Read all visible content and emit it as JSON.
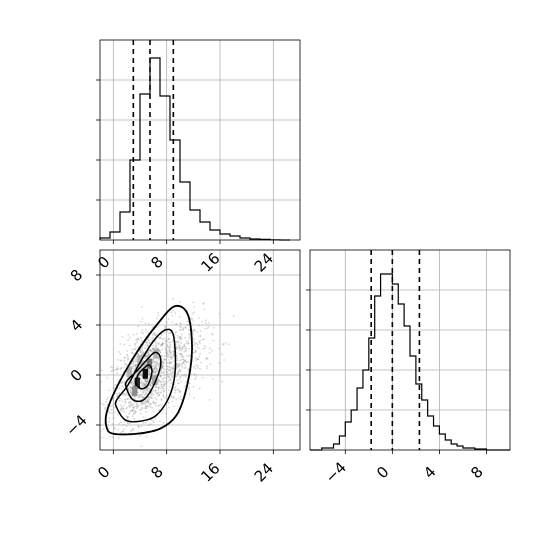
{
  "chart_data": {
    "type": "corner",
    "title": "",
    "grid": true,
    "colors": {
      "line": "#000000",
      "grid": "#b0b0b0",
      "scatter": "#8c8c8c"
    },
    "x_hist": {
      "type": "histogram",
      "xlim": [
        -2,
        28
      ],
      "ylim": [
        0,
        1
      ],
      "xticks": [
        0,
        8,
        16,
        24
      ],
      "bin_edges": [
        -2.0,
        -0.5,
        1.0,
        2.5,
        4.0,
        5.5,
        7.0,
        8.5,
        10.0,
        11.5,
        13.0,
        14.5,
        16.0,
        17.5,
        19.0,
        20.5,
        22.0,
        23.5,
        25.0,
        26.5
      ],
      "values": [
        0.01,
        0.04,
        0.14,
        0.4,
        0.73,
        0.91,
        0.72,
        0.5,
        0.29,
        0.15,
        0.09,
        0.05,
        0.03,
        0.02,
        0.01,
        0.005,
        0.003,
        0.001,
        0.0
      ],
      "quantile_lines": [
        3.0,
        5.5,
        9.0
      ]
    },
    "y_hist": {
      "type": "histogram",
      "xlim": [
        -7,
        10
      ],
      "ylim": [
        0,
        1
      ],
      "xticks": [
        -4,
        0,
        4,
        8
      ],
      "xtick_labels": [
        "−4",
        "0",
        "4",
        "8"
      ],
      "bin_edges": [
        -7.0,
        -6.0,
        -5.0,
        -4.5,
        -4.0,
        -3.5,
        -3.0,
        -2.5,
        -2.0,
        -1.5,
        -1.0,
        -0.5,
        0.0,
        0.5,
        1.0,
        1.5,
        2.0,
        2.5,
        3.0,
        3.5,
        4.0,
        4.5,
        5.0,
        5.5,
        6.0,
        7.0,
        8.0,
        9.0,
        10.0
      ],
      "values": [
        0.0,
        0.01,
        0.03,
        0.07,
        0.14,
        0.2,
        0.31,
        0.4,
        0.56,
        0.77,
        0.88,
        0.88,
        0.83,
        0.73,
        0.62,
        0.47,
        0.33,
        0.25,
        0.17,
        0.12,
        0.08,
        0.05,
        0.03,
        0.02,
        0.01,
        0.005,
        0.0,
        0.0
      ],
      "quantile_lines": [
        -1.8,
        0.0,
        2.3
      ]
    },
    "joint": {
      "type": "scatter+contour",
      "xlim": [
        -2,
        28
      ],
      "ylim": [
        -6,
        10
      ],
      "xticks": [
        0,
        8,
        16,
        24
      ],
      "yticks": [
        -4,
        0,
        4,
        8
      ],
      "ytick_labels": [
        "−4",
        "0",
        "4",
        "8"
      ],
      "scatter": {
        "count": 1600,
        "x_center": 5.5,
        "x_spread": 2.8,
        "y_center": 0.2,
        "y_spread": 2.0,
        "correlation": 0.5
      },
      "contours": [
        [
          [
            -1.0,
            -4.2
          ],
          [
            0.0,
            -4.7
          ],
          [
            3.5,
            -4.7
          ],
          [
            7.0,
            -4.3
          ],
          [
            9.5,
            -3.2
          ],
          [
            11.0,
            -1.0
          ],
          [
            11.8,
            2.0
          ],
          [
            11.2,
            4.8
          ],
          [
            9.2,
            5.5
          ],
          [
            6.5,
            4.0
          ],
          [
            3.5,
            1.8
          ],
          [
            0.5,
            -1.0
          ],
          [
            -1.0,
            -3.0
          ],
          [
            -1.0,
            -4.2
          ]
        ],
        [
          [
            0.5,
            -2.6
          ],
          [
            1.8,
            -3.6
          ],
          [
            4.0,
            -3.7
          ],
          [
            6.5,
            -3.2
          ],
          [
            8.5,
            -1.6
          ],
          [
            9.3,
            0.5
          ],
          [
            9.0,
            3.2
          ],
          [
            7.8,
            3.6
          ],
          [
            6.0,
            2.7
          ],
          [
            4.0,
            1.0
          ],
          [
            2.2,
            -0.8
          ],
          [
            0.5,
            -2.0
          ],
          [
            0.5,
            -2.6
          ]
        ],
        [
          [
            2.0,
            -1.1
          ],
          [
            3.0,
            -2.0
          ],
          [
            4.5,
            -2.0
          ],
          [
            5.8,
            -1.1
          ],
          [
            7.0,
            0.5
          ],
          [
            7.0,
            1.5
          ],
          [
            6.2,
            1.8
          ],
          [
            5.0,
            1.2
          ],
          [
            3.5,
            0.3
          ],
          [
            2.0,
            -0.5
          ],
          [
            2.0,
            -1.1
          ]
        ],
        [
          [
            3.4,
            -0.7
          ],
          [
            4.2,
            -1.1
          ],
          [
            5.2,
            -0.8
          ],
          [
            5.8,
            0.3
          ],
          [
            5.3,
            0.8
          ],
          [
            4.5,
            0.5
          ],
          [
            3.7,
            0.0
          ],
          [
            3.4,
            -0.7
          ]
        ]
      ],
      "density_cells": [
        {
          "x": 4.8,
          "y": 0.1,
          "level": 0.95
        },
        {
          "x": 3.6,
          "y": -0.6,
          "level": 0.85
        },
        {
          "x": 5.4,
          "y": 0.9,
          "level": 0.55
        },
        {
          "x": 3.2,
          "y": -1.3,
          "level": 0.45
        },
        {
          "x": 6.4,
          "y": 1.7,
          "level": 0.3
        },
        {
          "x": 6.2,
          "y": -0.4,
          "level": 0.35
        },
        {
          "x": 2.4,
          "y": 0.2,
          "level": 0.3
        },
        {
          "x": 4.0,
          "y": 1.2,
          "level": 0.3
        }
      ]
    }
  }
}
